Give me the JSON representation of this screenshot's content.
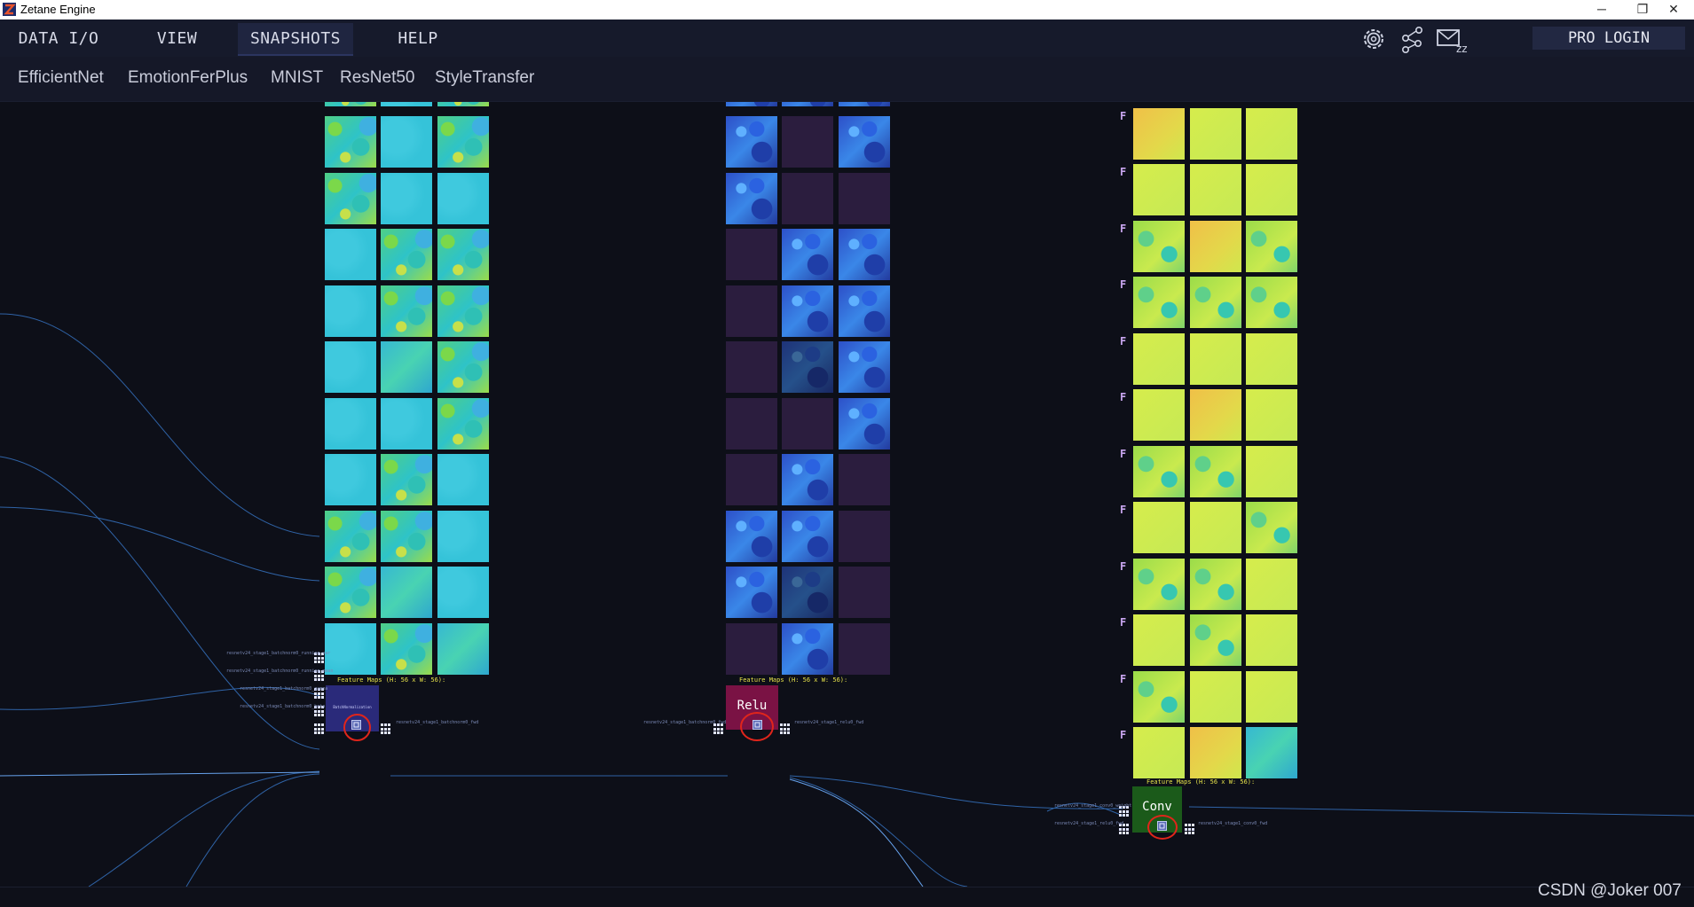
{
  "window": {
    "title": "Zetane Engine",
    "controls": [
      "minimize-icon",
      "restore-icon",
      "close-icon"
    ]
  },
  "menu": [
    {
      "label": "DATA I/O",
      "active": false
    },
    {
      "label": "VIEW",
      "active": false
    },
    {
      "label": "SNAPSHOTS",
      "active": true
    },
    {
      "label": "HELP",
      "active": false
    }
  ],
  "toolbar": {
    "icons": [
      "settings-gear-icon",
      "network-graph-icon",
      "mail-icon"
    ],
    "pro_login": "PRO LOGIN"
  },
  "tabs": [
    "EfficientNet",
    "EmotionFerPlus",
    "MNIST",
    "ResNet50",
    "StyleTransfer"
  ],
  "nodes": {
    "batchnorm": {
      "label": "BatchNormalization",
      "feature_maps": "Feature Maps (H: 56 x W: 56):"
    },
    "relu": {
      "label": "Relu",
      "feature_maps": "Feature Maps (H: 56 x W: 56):"
    },
    "conv": {
      "label": "Conv",
      "feature_maps": "Feature Maps (H: 56 x W: 56):"
    }
  },
  "filter_label": "F",
  "wire_labels": {
    "bn_in1": "resnetv24_stage1_batchnorm0_running_var",
    "bn_in2": "resnetv24_stage1_batchnorm0_running_mean",
    "bn_in3": "resnetv24_stage1_batchnorm0_gamma",
    "bn_in4": "resnetv24_stage1_batchnorm0_beta",
    "bn_out": "resnetv24_stage1_batchnorm0_fwd",
    "relu_in": "resnetv24_stage1_batchnorm0_fwd",
    "relu_out": "resnetv24_stage1_relu0_fwd",
    "conv_in1": "resnetv24_stage1_conv0_weight",
    "conv_in2": "resnetv24_stage1_relu0_fwd",
    "conv_out": "resnetv24_stage1_conv0_fwd"
  },
  "watermark": "CSDN @Joker 007",
  "colors": {
    "background": "#0d0f18",
    "menubar": "#161a2b",
    "relu_node": "#7a1244",
    "conv_node": "#1b5a1a",
    "bn_node": "#2a2a7a",
    "highlight": "#e0251b",
    "wire": "#3b7fd6"
  }
}
